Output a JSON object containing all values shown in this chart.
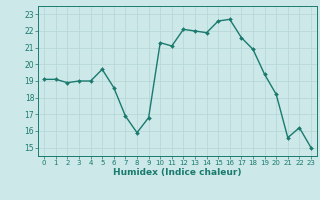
{
  "x": [
    0,
    1,
    2,
    3,
    4,
    5,
    6,
    7,
    8,
    9,
    10,
    11,
    12,
    13,
    14,
    15,
    16,
    17,
    18,
    19,
    20,
    21,
    22,
    23
  ],
  "y": [
    19.1,
    19.1,
    18.9,
    19.0,
    19.0,
    19.7,
    18.6,
    16.9,
    15.9,
    16.8,
    21.3,
    21.1,
    22.1,
    22.0,
    21.9,
    22.6,
    22.7,
    21.6,
    20.9,
    19.4,
    18.2,
    15.6,
    16.2,
    15.0
  ],
  "xlabel": "Humidex (Indice chaleur)",
  "ylim": [
    14.5,
    23.5
  ],
  "xlim": [
    -0.5,
    23.5
  ],
  "yticks": [
    15,
    16,
    17,
    18,
    19,
    20,
    21,
    22,
    23
  ],
  "xticks": [
    0,
    1,
    2,
    3,
    4,
    5,
    6,
    7,
    8,
    9,
    10,
    11,
    12,
    13,
    14,
    15,
    16,
    17,
    18,
    19,
    20,
    21,
    22,
    23
  ],
  "line_color": "#1a7a6e",
  "marker_color": "#1a7a6e",
  "bg_color": "#cce8e8",
  "grid_color": "#b8d8d8",
  "axis_color": "#1a7a6e",
  "label_color": "#1a7a6e",
  "tick_color": "#1a7a6e"
}
